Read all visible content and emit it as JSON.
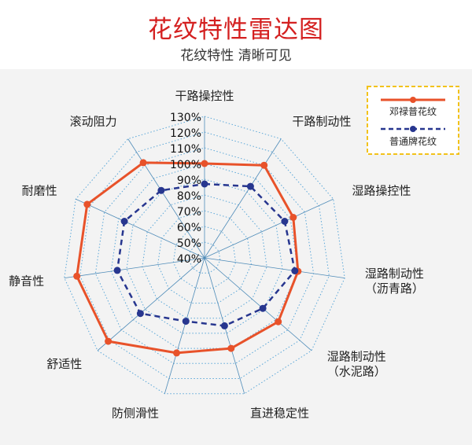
{
  "header": {
    "title": "花纹特性雷达图",
    "subtitle": "花纹特性 清晰可见"
  },
  "chart_data": {
    "type": "radar",
    "categories": [
      "干路操控性",
      "干路制动性",
      "湿路操控性",
      "湿路制动性\n（沥青路）",
      "湿路制动性\n（水泥路）",
      "直进稳定性",
      "防侧滑性",
      "舒适性",
      "静音性",
      "耐磨性",
      "滚动阻力"
    ],
    "r_ticks": [
      "40%",
      "50%",
      "60%",
      "70%",
      "80%",
      "90%",
      "100%",
      "110%",
      "120%",
      "130%"
    ],
    "r_range": [
      40,
      130
    ],
    "series": [
      {
        "name": "邓禄普花纹",
        "color": "#e8522a",
        "style": "solid",
        "values": [
          100,
          110,
          102,
          100,
          102,
          100,
          103,
          121,
          122,
          122,
          112
        ]
      },
      {
        "name": "普通牌花纹",
        "color": "#27368f",
        "style": "dashed",
        "values": [
          87,
          94,
          96,
          98,
          89,
          85,
          82,
          94,
          96,
          96,
          91
        ]
      }
    ],
    "legend_position": "top-right"
  },
  "colors": {
    "title": "#d42020",
    "grid": "#5ba7d8",
    "spoke": "#4e8bb8",
    "legend_border": "#f2c21a"
  }
}
